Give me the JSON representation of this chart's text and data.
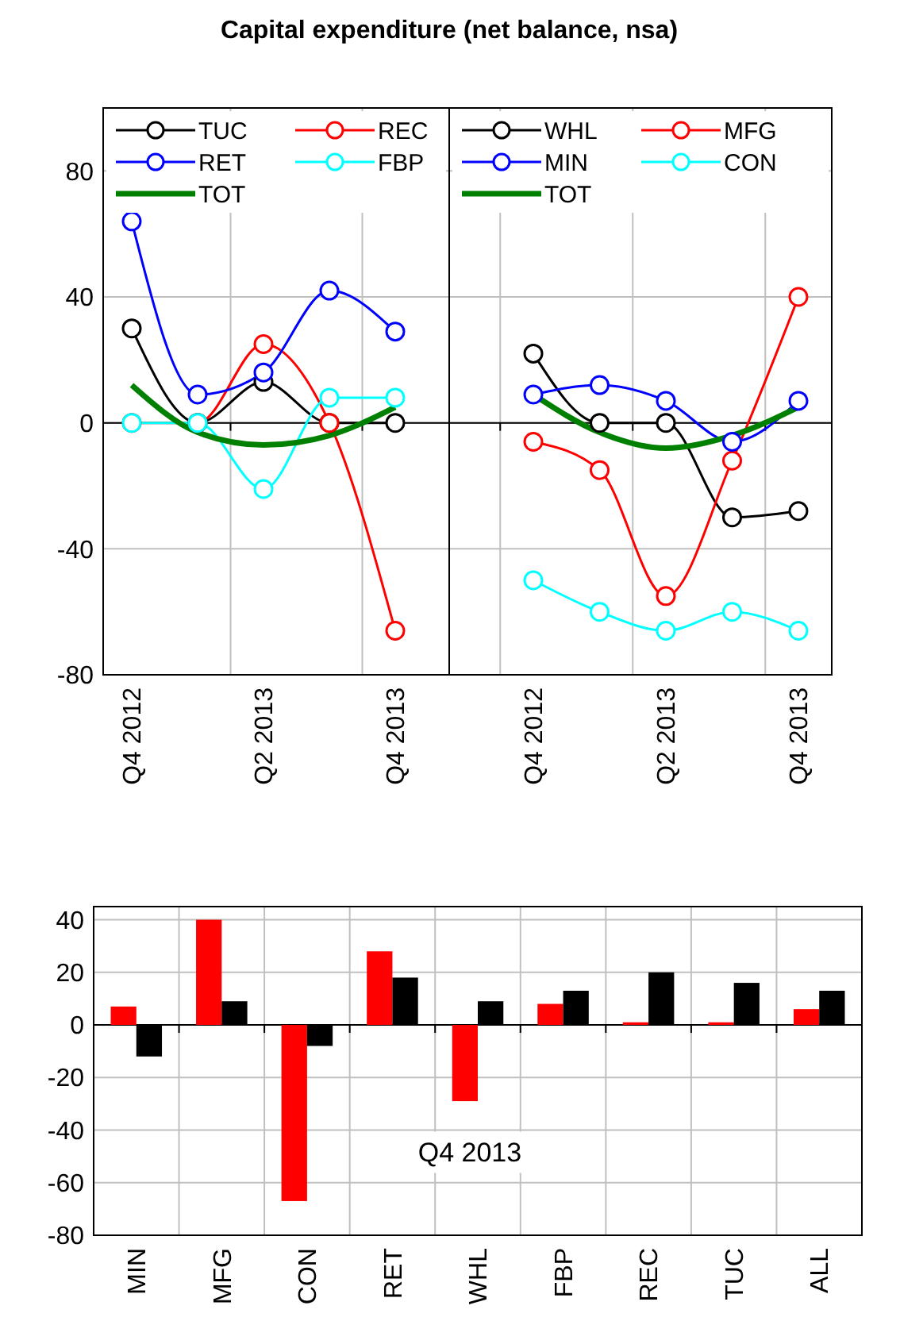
{
  "chart_data": [
    {
      "type": "line",
      "title": "Capital expenditure (net balance, nsa)",
      "categories": [
        "Q4 2012",
        null,
        "Q2 2013",
        null,
        "Q4 2013"
      ],
      "ylim": [
        -80,
        100
      ],
      "yticks": [
        -80,
        -40,
        0,
        40,
        80
      ],
      "grid": true,
      "legend": "top",
      "marker": "circle",
      "series": [
        {
          "name": "TUC",
          "color": "#000000",
          "values": [
            30,
            0,
            13,
            0,
            0
          ]
        },
        {
          "name": "REC",
          "color": "#ff0000",
          "values": [
            0,
            0,
            25,
            0,
            -66
          ]
        },
        {
          "name": "RET",
          "color": "#0000ff",
          "values": [
            64,
            9,
            16,
            42,
            29
          ]
        },
        {
          "name": "FBP",
          "color": "#00ffff",
          "values": [
            0,
            0,
            -21,
            8,
            8
          ]
        },
        {
          "name": "TOT",
          "color": "#008000",
          "values": [
            12,
            -3,
            -7,
            -4,
            5
          ],
          "marker": "none"
        }
      ]
    },
    {
      "type": "line",
      "categories": [
        "Q4 2012",
        null,
        "Q2 2013",
        null,
        "Q4 2013"
      ],
      "ylim": [
        -80,
        100
      ],
      "yticks": [
        -80,
        -40,
        0,
        40,
        80
      ],
      "tick_labels": "x",
      "grid": true,
      "legend": "top",
      "marker": "circle",
      "series": [
        {
          "name": "WHL",
          "color": "#000000",
          "values": [
            22,
            0,
            0,
            -30,
            -28
          ]
        },
        {
          "name": "MFG",
          "color": "#ff0000",
          "values": [
            -6,
            -15,
            -55,
            -12,
            40
          ]
        },
        {
          "name": "MIN",
          "color": "#0000ff",
          "values": [
            9,
            12,
            7,
            -6,
            7
          ]
        },
        {
          "name": "CON",
          "color": "#00ffff",
          "values": [
            -50,
            -60,
            -66,
            -60,
            -66
          ]
        },
        {
          "name": "TOT",
          "color": "#008000",
          "values": [
            9,
            -3,
            -8,
            -4,
            5
          ],
          "marker": "none"
        }
      ]
    },
    {
      "type": "bar",
      "categories": [
        "MIN",
        "MFG",
        "CON",
        "RET",
        "WHL",
        "FBP",
        "REC",
        "TUC",
        "ALL"
      ],
      "ylim": [
        -80,
        45
      ],
      "yticks": [
        -80,
        -60,
        -40,
        -20,
        0,
        20,
        40
      ],
      "grid": true,
      "annotations": [
        "Q4 2013"
      ],
      "series": [
        {
          "color": "#ff0000",
          "values": [
            7,
            40,
            -67,
            28,
            -29,
            8,
            1,
            1,
            6
          ]
        },
        {
          "color": "#000000",
          "values": [
            -12,
            9,
            -8,
            18,
            9,
            13,
            20,
            16,
            13
          ]
        }
      ]
    }
  ]
}
